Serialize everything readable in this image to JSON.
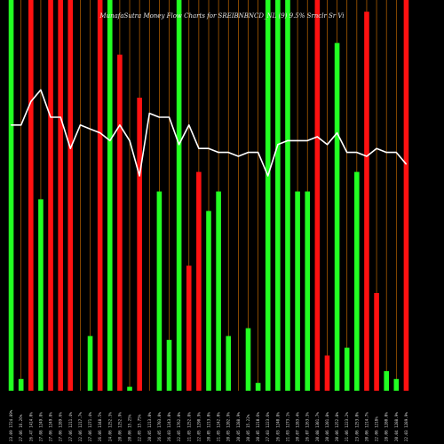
{
  "chart_data": {
    "type": "bar",
    "title": "MunafaSutra Money Flow Charts for SREIBNBNCD_NL     (9)  9.5% Srnclr Sr Vi",
    "xlabel": "",
    "ylabel": "",
    "ylim": [
      0,
      100
    ],
    "colors": {
      "background": "#000000",
      "up": "#22ff22",
      "down": "#ff1111",
      "grid": "#e07800",
      "line": "#ffffff",
      "text": "#e8e8e8"
    },
    "categories": [
      "23.09 1724.89%",
      "27.06 16.26%",
      "26.47 1414.0%",
      "27.08 1249.8%",
      "27.06 1249.8%",
      "27.06 1289.6%",
      "27.06 1211.4%",
      "22.06 1217.7%",
      "27.06 1271.4%",
      "26.06 1348.5%",
      "24.06 1252.3%",
      "20.06 1252.9%",
      "20.06 15.25%",
      "22.05 15.75%",
      "20.05 1213.0%",
      "26.05 1703.0%",
      "26.03 1243.0%",
      "22.05 1762.0%",
      "21.05 1252.8%",
      "22.05 1290.9%",
      "20.05 1213.0%",
      "21.05 1242.0%",
      "20.05 1202.9%",
      "20.05 1288.9%",
      "20.05 15.22%",
      "20.05 1210.6%",
      "27.03 1223.6%",
      "26.03 1240.8%",
      "21.03 1273.1%",
      "20.07 1283.4%",
      "26.07 1263.3%",
      "20.08 1301.7%",
      "20.06 1201.8%",
      "20.06 1252.8%",
      "21.06 1223.2%",
      "23.06 1253.0%",
      "20.06 1214.7%",
      "22.06 1218%",
      "28.06 1280.0%",
      "20.04 1288.9%",
      "22.03 1289.9%"
    ],
    "series": [
      {
        "values": [
          100,
          3,
          100,
          49,
          100,
          100,
          100,
          0,
          14,
          100,
          100,
          86,
          1,
          75,
          0,
          51,
          13,
          100,
          32,
          56,
          46,
          51,
          14,
          0,
          16,
          2,
          100,
          100,
          100,
          51,
          51,
          100,
          9,
          89,
          11,
          56,
          97,
          25,
          5,
          3,
          100
        ],
        "directions": [
          "up",
          "up",
          "down",
          "up",
          "down",
          "down",
          "down",
          "up",
          "up",
          "down",
          "up",
          "down",
          "up",
          "down",
          "down",
          "up",
          "up",
          "up",
          "down",
          "down",
          "up",
          "up",
          "up",
          "down",
          "up",
          "up",
          "up",
          "up",
          "up",
          "up",
          "up",
          "down",
          "down",
          "up",
          "up",
          "up",
          "down",
          "down",
          "up",
          "up",
          "down"
        ]
      },
      {
        "values": [
          68,
          68,
          74,
          77,
          70,
          70,
          62,
          68,
          67,
          66,
          64,
          68,
          64,
          55,
          71,
          70,
          70,
          63,
          68,
          62,
          62,
          61,
          61,
          60,
          61,
          61,
          55,
          63,
          64,
          64,
          64,
          65,
          63,
          66,
          61,
          61,
          60,
          62,
          61,
          61,
          58
        ]
      }
    ]
  }
}
